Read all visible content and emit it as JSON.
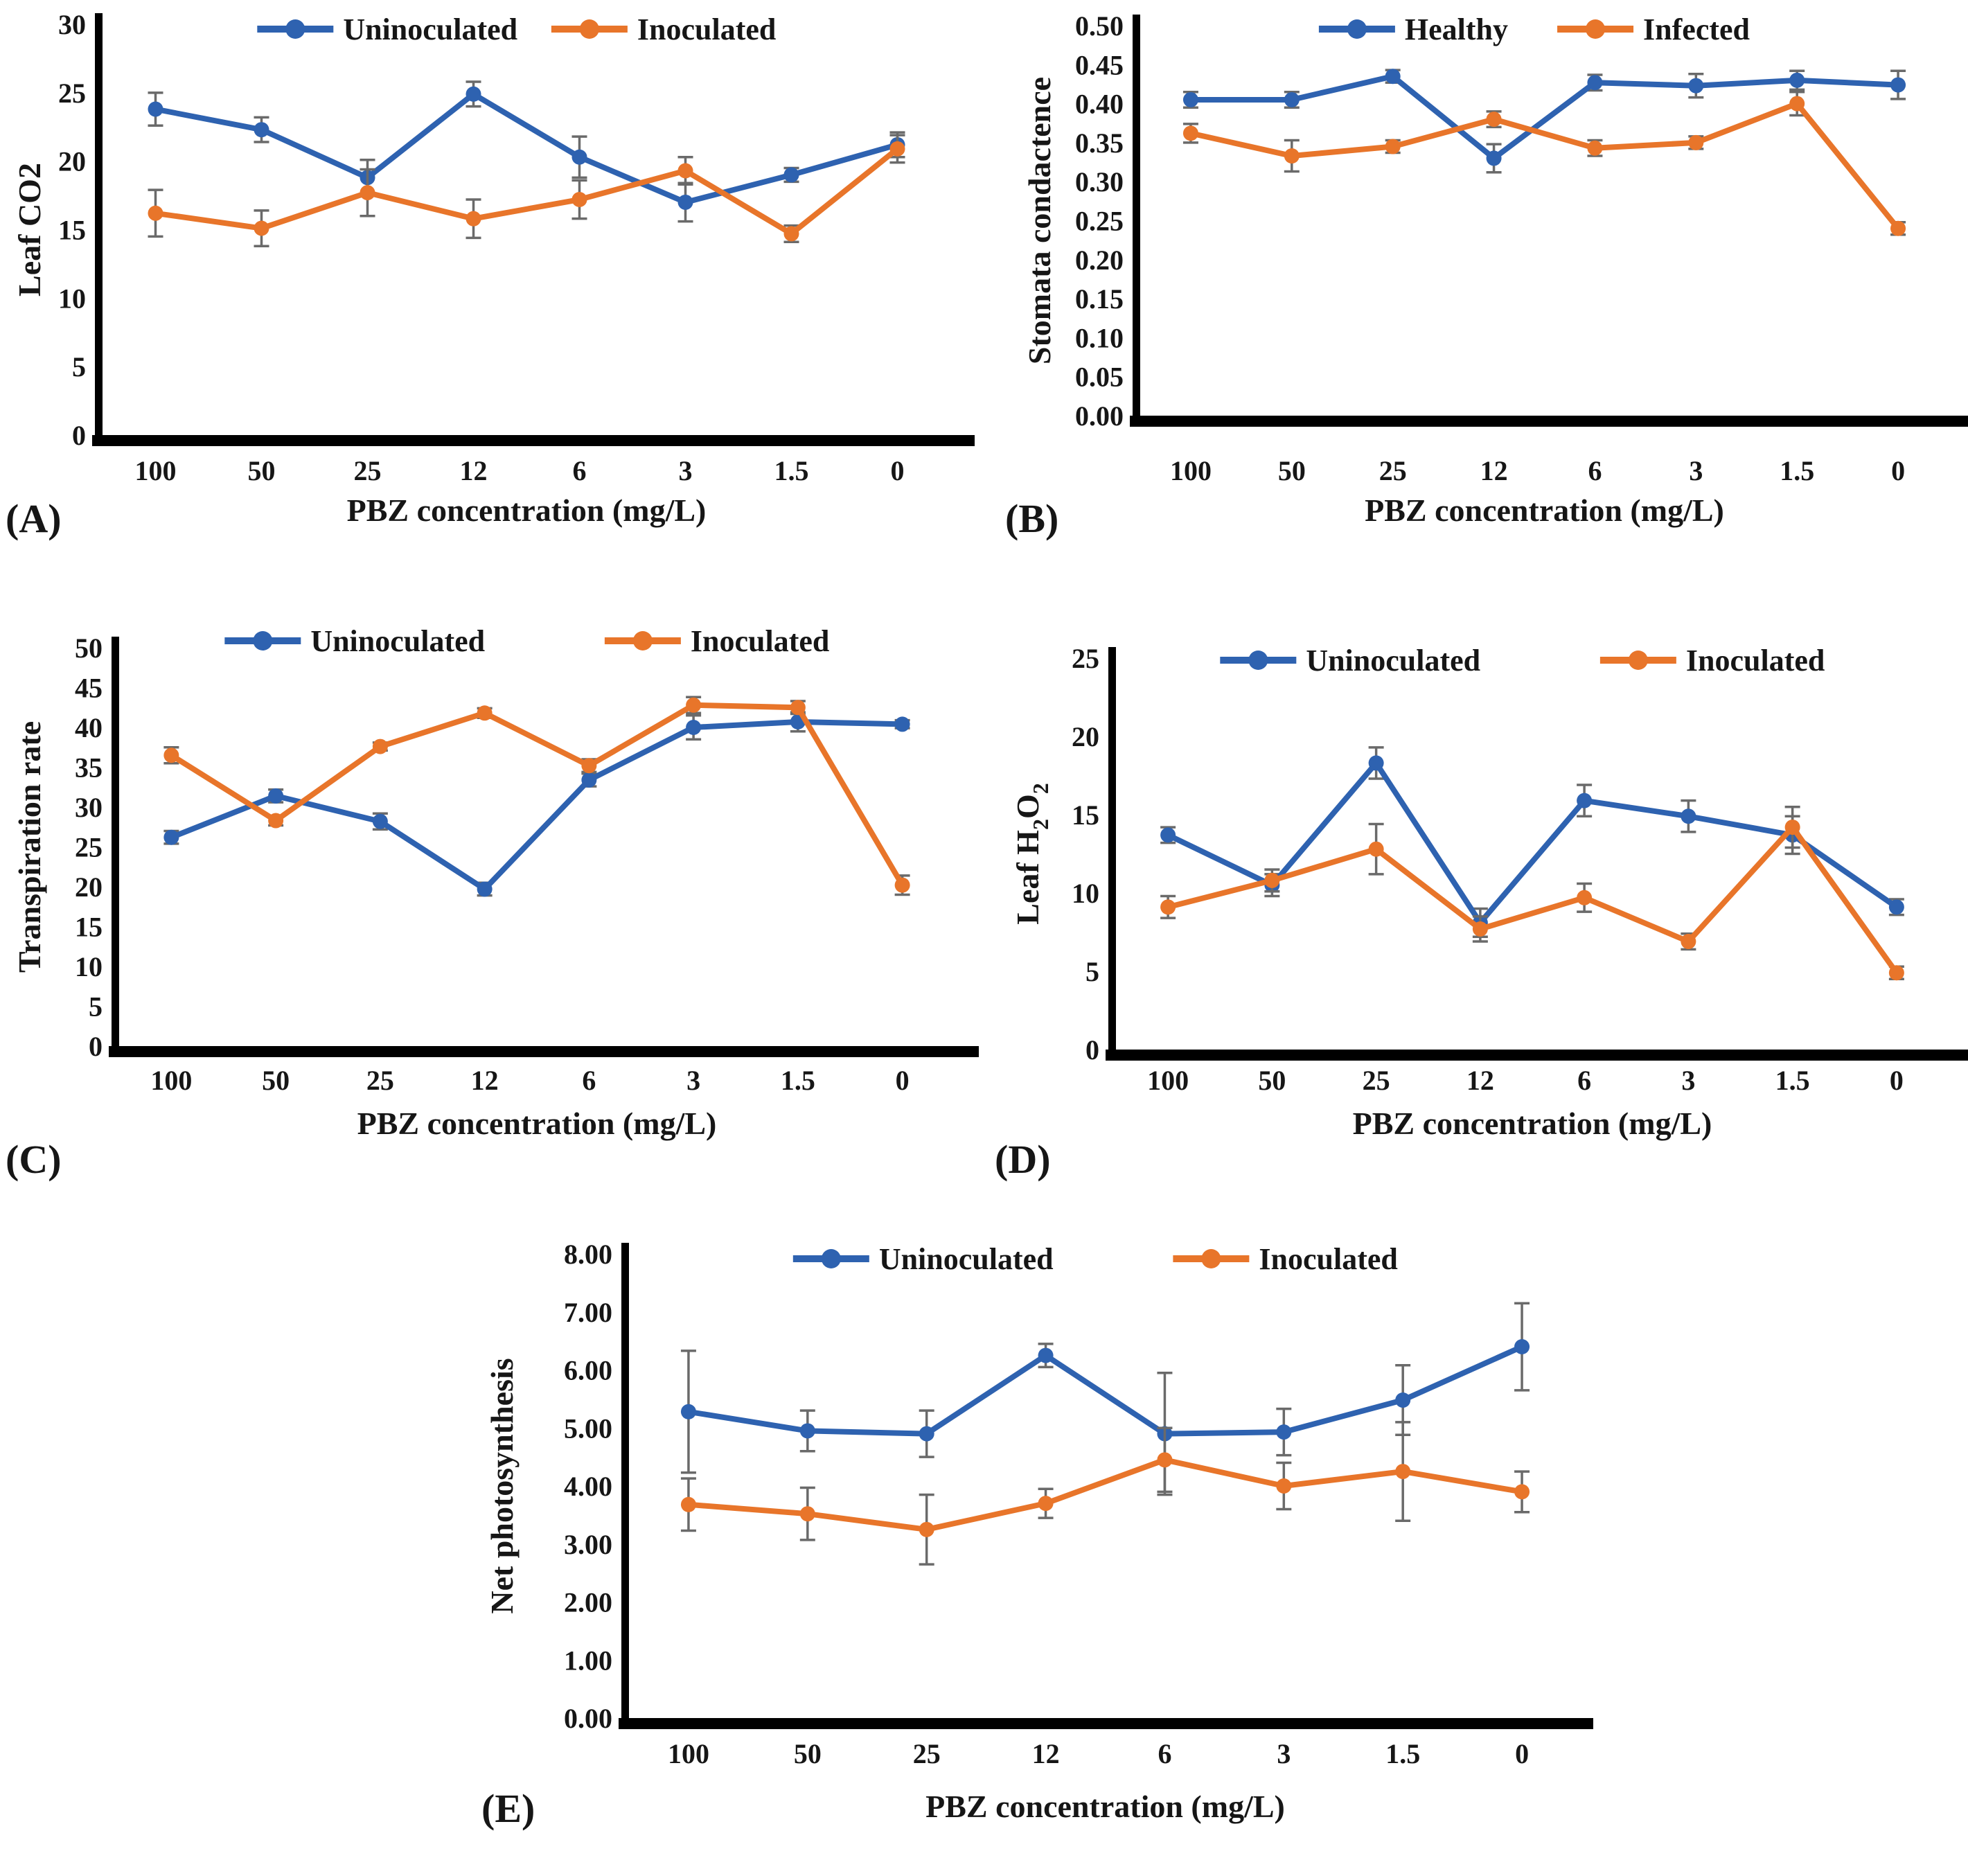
{
  "figure": {
    "background": "#ffffff",
    "accent_blue": "#2e62b0",
    "accent_orange": "#e8752a",
    "error_bar_color": "#6a6a6a",
    "axis_color": "#000000"
  },
  "chart_data": [
    {
      "id": "A",
      "panel_label": "(A)",
      "type": "line",
      "ylabel": "Leaf CO2",
      "xlabel": "PBZ concentration (mg/L)",
      "categories": [
        "100",
        "50",
        "25",
        "12",
        "6",
        "3",
        "1.5",
        "0"
      ],
      "ylim": [
        0,
        30
      ],
      "ytick_labels": [
        "0",
        "5",
        "10",
        "15",
        "20",
        "25",
        "30"
      ],
      "grid": false,
      "legend_position": "top-center",
      "series": [
        {
          "name": "Uninoculated",
          "color": "#2e62b0",
          "values": [
            23.8,
            22.3,
            18.8,
            24.9,
            20.3,
            17.0,
            19.0,
            21.2
          ],
          "errors": [
            1.2,
            0.9,
            1.3,
            0.9,
            1.5,
            1.4,
            0.5,
            0.9
          ]
        },
        {
          "name": "Inoculated",
          "color": "#e8752a",
          "values": [
            16.2,
            15.1,
            17.7,
            15.8,
            17.2,
            19.3,
            14.7,
            20.9
          ],
          "errors": [
            1.7,
            1.3,
            1.7,
            1.4,
            1.4,
            1.0,
            0.6,
            1.0
          ]
        }
      ]
    },
    {
      "id": "B",
      "panel_label": "(B)",
      "type": "line",
      "ylabel": "Stomata condactence",
      "xlabel": "PBZ concentration (mg/L)",
      "categories": [
        "100",
        "50",
        "25",
        "12",
        "6",
        "3",
        "1.5",
        "0"
      ],
      "ylim": [
        0,
        0.5
      ],
      "ytick_labels": [
        "0.00",
        "0.05",
        "0.10",
        "0.15",
        "0.20",
        "0.25",
        "0.30",
        "0.35",
        "0.40",
        "0.45",
        "0.50"
      ],
      "grid": false,
      "legend_position": "top-center",
      "series": [
        {
          "name": "Healthy",
          "color": "#2e62b0",
          "values": [
            0.405,
            0.405,
            0.435,
            0.33,
            0.427,
            0.423,
            0.43,
            0.424
          ],
          "errors": [
            0.01,
            0.01,
            0.008,
            0.018,
            0.01,
            0.015,
            0.012,
            0.018
          ]
        },
        {
          "name": "Infected",
          "color": "#e8752a",
          "values": [
            0.362,
            0.333,
            0.345,
            0.38,
            0.343,
            0.35,
            0.4,
            0.24
          ],
          "errors": [
            0.012,
            0.02,
            0.008,
            0.01,
            0.01,
            0.008,
            0.015,
            0.008
          ]
        }
      ]
    },
    {
      "id": "C",
      "panel_label": "(C)",
      "type": "line",
      "ylabel": "Transpiration rate",
      "xlabel": "PBZ concentration (mg/L)",
      "categories": [
        "100",
        "50",
        "25",
        "12",
        "6",
        "3",
        "1.5",
        "0"
      ],
      "ylim": [
        0,
        50
      ],
      "ytick_labels": [
        "0",
        "5",
        "10",
        "15",
        "20",
        "25",
        "30",
        "35",
        "40",
        "45",
        "50"
      ],
      "grid": false,
      "legend_position": "top-center",
      "series": [
        {
          "name": "Uninoculated",
          "color": "#2e62b0",
          "values": [
            26.2,
            31.4,
            28.2,
            19.7,
            33.4,
            40.0,
            40.7,
            40.4
          ],
          "errors": [
            0.8,
            0.8,
            1.0,
            0.8,
            0.8,
            1.5,
            1.2,
            0.5
          ]
        },
        {
          "name": "Inoculated",
          "color": "#e8752a",
          "values": [
            36.5,
            28.3,
            37.6,
            41.8,
            35.2,
            42.8,
            42.5,
            20.2
          ],
          "errors": [
            1.0,
            0.6,
            0.5,
            0.6,
            0.8,
            1.0,
            0.8,
            1.2
          ]
        }
      ]
    },
    {
      "id": "D",
      "panel_label": "(D)",
      "type": "line",
      "ylabel": "Leaf H2O2",
      "ylabel_rich": [
        {
          "t": "Leaf H",
          "sub": false
        },
        {
          "t": "2",
          "sub": true
        },
        {
          "t": "O",
          "sub": false
        },
        {
          "t": "2",
          "sub": true
        }
      ],
      "xlabel": "PBZ concentration (mg/L)",
      "categories": [
        "100",
        "50",
        "25",
        "12",
        "6",
        "3",
        "1.5",
        "0"
      ],
      "ylim": [
        0,
        25
      ],
      "ytick_labels": [
        "0",
        "5",
        "10",
        "15",
        "20",
        "25"
      ],
      "grid": false,
      "legend_position": "top-center",
      "series": [
        {
          "name": "Uninoculated",
          "color": "#2e62b0",
          "values": [
            13.7,
            10.5,
            18.3,
            8.1,
            15.9,
            14.9,
            13.7,
            9.1
          ],
          "errors": [
            0.5,
            0.7,
            1.0,
            0.9,
            1.0,
            1.0,
            1.2,
            0.5
          ]
        },
        {
          "name": "Inoculated",
          "color": "#e8752a",
          "values": [
            9.1,
            10.8,
            12.8,
            7.7,
            9.7,
            6.9,
            14.2,
            4.9
          ],
          "errors": [
            0.7,
            0.7,
            1.6,
            0.8,
            0.9,
            0.5,
            1.3,
            0.4
          ]
        }
      ]
    },
    {
      "id": "E",
      "panel_label": "(E)",
      "type": "line",
      "ylabel": "Net photosynthesis",
      "xlabel": "PBZ concentration (mg/L)",
      "categories": [
        "100",
        "50",
        "25",
        "12",
        "6",
        "3",
        "1.5",
        "0"
      ],
      "ylim": [
        0,
        8
      ],
      "ytick_labels": [
        "0.00",
        "1.00",
        "2.00",
        "3.00",
        "4.00",
        "5.00",
        "6.00",
        "7.00",
        "8.00"
      ],
      "grid": false,
      "legend_position": "top-center",
      "series": [
        {
          "name": "Uninoculated",
          "color": "#2e62b0",
          "values": [
            5.28,
            4.95,
            4.9,
            6.25,
            4.9,
            4.93,
            5.48,
            6.4
          ],
          "errors": [
            1.05,
            0.35,
            0.4,
            0.2,
            1.05,
            0.4,
            0.6,
            0.75
          ]
        },
        {
          "name": "Inoculated",
          "color": "#e8752a",
          "values": [
            3.68,
            3.52,
            3.25,
            3.7,
            4.45,
            4.0,
            4.25,
            3.9
          ],
          "errors": [
            0.45,
            0.45,
            0.6,
            0.25,
            0.55,
            0.4,
            0.85,
            0.35
          ]
        }
      ]
    }
  ]
}
